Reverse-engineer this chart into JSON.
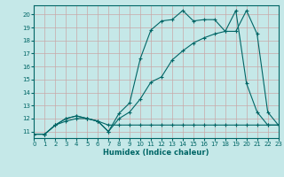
{
  "xlabel": "Humidex (Indice chaleur)",
  "bg_color": "#c5e8e8",
  "grid_color": "#c8a8a8",
  "line_color": "#006666",
  "xlim": [
    0,
    23
  ],
  "ylim": [
    10.5,
    20.7
  ],
  "xticks": [
    0,
    1,
    2,
    3,
    4,
    5,
    6,
    7,
    8,
    9,
    10,
    11,
    12,
    13,
    14,
    15,
    16,
    17,
    18,
    19,
    20,
    21,
    22,
    23
  ],
  "yticks": [
    11,
    12,
    13,
    14,
    15,
    16,
    17,
    18,
    19,
    20
  ],
  "line1_x": [
    0,
    1,
    2,
    3,
    4,
    5,
    6,
    7,
    8,
    9,
    10,
    11,
    12,
    13,
    14,
    15,
    16,
    17,
    18,
    19,
    20,
    21,
    22,
    23
  ],
  "line1_y": [
    10.8,
    10.8,
    11.5,
    12.0,
    12.2,
    12.0,
    11.8,
    11.0,
    12.4,
    13.2,
    16.6,
    18.8,
    19.5,
    19.6,
    20.3,
    19.5,
    19.6,
    19.6,
    18.7,
    20.3,
    14.7,
    12.5,
    11.5,
    11.5
  ],
  "line2_x": [
    0,
    1,
    2,
    3,
    4,
    5,
    6,
    7,
    8,
    9,
    10,
    11,
    12,
    13,
    14,
    15,
    16,
    17,
    18,
    19,
    20,
    21,
    22,
    23
  ],
  "line2_y": [
    10.8,
    10.8,
    11.5,
    12.0,
    12.2,
    12.0,
    11.8,
    11.0,
    12.0,
    12.5,
    13.5,
    14.8,
    15.2,
    16.5,
    17.2,
    17.8,
    18.2,
    18.5,
    18.7,
    18.7,
    20.3,
    18.5,
    12.5,
    11.5
  ],
  "line3_x": [
    0,
    1,
    2,
    3,
    4,
    5,
    6,
    7,
    8,
    9,
    10,
    11,
    12,
    13,
    14,
    15,
    16,
    17,
    18,
    19,
    20,
    21,
    22,
    23
  ],
  "line3_y": [
    10.8,
    10.8,
    11.5,
    11.8,
    12.0,
    12.0,
    11.8,
    11.5,
    11.5,
    11.5,
    11.5,
    11.5,
    11.5,
    11.5,
    11.5,
    11.5,
    11.5,
    11.5,
    11.5,
    11.5,
    11.5,
    11.5,
    11.5,
    11.5
  ]
}
